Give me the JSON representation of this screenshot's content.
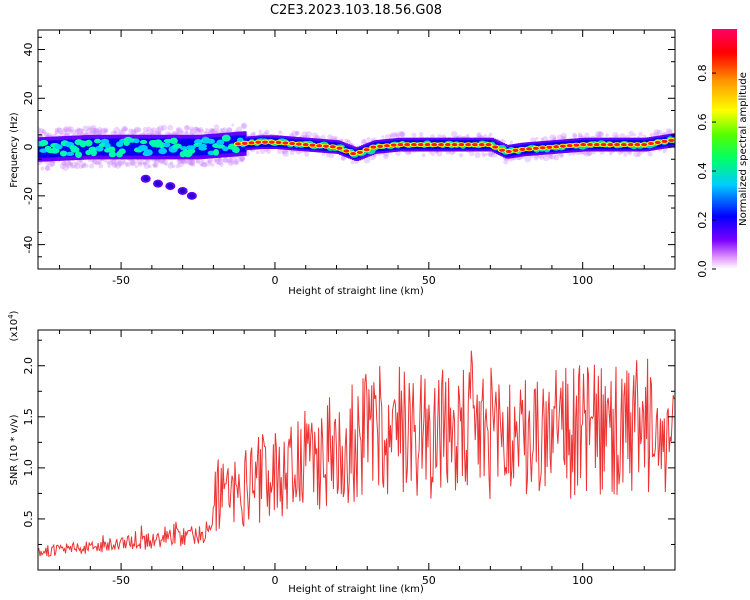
{
  "figure_title": "C2E3.2023.103.18.56.G08",
  "chart_data": [
    {
      "type": "heatmap",
      "xlabel": "Height of straight line (km)",
      "ylabel": "Frequency (Hz)",
      "xlim": [
        -77,
        130
      ],
      "ylim": [
        -50,
        48
      ],
      "xticks": [
        -50,
        0,
        50,
        100
      ],
      "xtick_labels": [
        "-50",
        "0",
        "50",
        "100"
      ],
      "yticks": [
        -40,
        -20,
        0,
        20,
        40
      ],
      "ytick_labels": [
        "-40",
        "-20",
        "0",
        "20",
        "40"
      ],
      "colorbar": {
        "label": "Normalized spectral amplitude",
        "range": [
          0,
          0.98
        ],
        "ticks": [
          0.0,
          0.2,
          0.4,
          0.6,
          0.8
        ],
        "tick_labels": [
          "0.0",
          "0.2",
          "0.4",
          "0.6",
          "0.8"
        ],
        "colors": [
          "#ffffff",
          "#cc33ff",
          "#5500ff",
          "#0000ff",
          "#00ccff",
          "#00ff66",
          "#66ff00",
          "#ffff00",
          "#ff9900",
          "#ff0000",
          "#ff0066"
        ]
      },
      "ridge": {
        "x": [
          -77,
          -60,
          -45,
          -35,
          -25,
          -15,
          -5,
          0,
          10,
          20,
          26,
          32,
          40,
          50,
          60,
          70,
          75,
          80,
          90,
          100,
          110,
          120,
          130
        ],
        "frequency": [
          -1,
          0,
          0,
          0,
          0,
          1,
          2,
          2,
          1,
          0,
          -3,
          0,
          1,
          1,
          1,
          1,
          -2,
          -1,
          0,
          1,
          1,
          1,
          3
        ]
      },
      "tail": {
        "x": [
          -42,
          -38,
          -34,
          -30,
          -27
        ],
        "frequency": [
          -13,
          -15,
          -16,
          -18,
          -20
        ]
      }
    },
    {
      "type": "line",
      "xlabel": "Height of straight line (km)",
      "ylabel": "SNR (10 * v/v)",
      "scale_label": "(x10",
      "scale_exponent": "4",
      "scale_close": ")",
      "xlim": [
        -77,
        130
      ],
      "ylim": [
        0,
        2.35
      ],
      "xticks": [
        -50,
        0,
        50,
        100
      ],
      "xtick_labels": [
        "-50",
        "0",
        "50",
        "100"
      ],
      "yticks": [
        0.5,
        1.0,
        1.5,
        2.0
      ],
      "ytick_labels": [
        "0.5",
        "1.0",
        "1.5",
        "2.0"
      ],
      "color": "#ee3333",
      "trend": {
        "x": [
          -77,
          -60,
          -45,
          -30,
          -21,
          -20,
          -10,
          0,
          10,
          20,
          30,
          40,
          50,
          60,
          70,
          80,
          90,
          100,
          110,
          120,
          130
        ],
        "snr": [
          0.18,
          0.22,
          0.27,
          0.33,
          0.38,
          0.72,
          0.82,
          0.95,
          1.05,
          1.18,
          1.32,
          1.38,
          1.36,
          1.33,
          1.35,
          1.3,
          1.32,
          1.36,
          1.34,
          1.33,
          1.28
        ]
      }
    }
  ]
}
